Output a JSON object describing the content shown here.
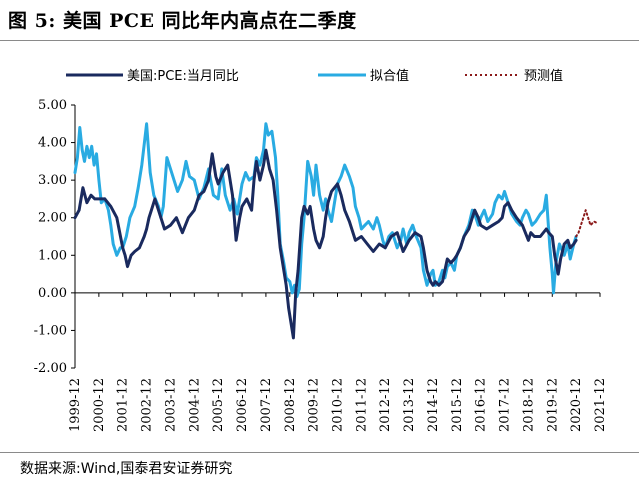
{
  "figure": {
    "title": "图 5:  美国 PCE 同比年内高点在二季度",
    "source": "数据来源:Wind,国泰君安证券研究"
  },
  "chart_data": {
    "type": "line",
    "title": "美国 PCE 同比年内高点在二季度",
    "xlabel": "",
    "ylabel": "",
    "ylim": [
      -2.0,
      5.0
    ],
    "yticks": [
      5.0,
      4.0,
      3.0,
      2.0,
      1.0,
      0.0,
      -1.0,
      -2.0
    ],
    "ytick_labels": [
      "5.00",
      "4.00",
      "3.00",
      "2.00",
      "1.00",
      "0.00",
      "-1.00",
      "-2.00"
    ],
    "x_unit": "year index (0 = 1999-12, monthly steps)",
    "xlim": [
      0,
      22
    ],
    "x_categories": [
      "1999-12",
      "2000-12",
      "2001-12",
      "2002-12",
      "2003-12",
      "2004-12",
      "2005-12",
      "2006-12",
      "2007-12",
      "2008-12",
      "2009-12",
      "2010-12",
      "2011-12",
      "2012-12",
      "2013-12",
      "2014-12",
      "2015-12",
      "2016-12",
      "2017-12",
      "2018-12",
      "2019-12",
      "2020-12",
      "2021-12"
    ],
    "legend_position": "top",
    "series": [
      {
        "name": "美国:PCE:当月同比",
        "color": "#1a2a5e",
        "style": "solid",
        "x": [
          0,
          0.17,
          0.33,
          0.5,
          0.67,
          0.83,
          1.0,
          1.25,
          1.5,
          1.75,
          2.0,
          2.1,
          2.2,
          2.35,
          2.5,
          2.7,
          2.9,
          3.0,
          3.1,
          3.2,
          3.35,
          3.5,
          3.75,
          4.0,
          4.25,
          4.5,
          4.75,
          5.0,
          5.2,
          5.4,
          5.6,
          5.75,
          5.9,
          6.0,
          6.2,
          6.4,
          6.6,
          6.75,
          6.9,
          7.0,
          7.2,
          7.4,
          7.5,
          7.6,
          7.75,
          7.9,
          8.0,
          8.15,
          8.3,
          8.45,
          8.6,
          8.75,
          8.85,
          8.95,
          9.05,
          9.15,
          9.25,
          9.35,
          9.5,
          9.6,
          9.75,
          9.85,
          10.0,
          10.1,
          10.25,
          10.4,
          10.5,
          10.6,
          10.75,
          11.0,
          11.15,
          11.3,
          11.5,
          11.75,
          12.0,
          12.25,
          12.5,
          12.75,
          13.0,
          13.25,
          13.5,
          13.75,
          14.0,
          14.25,
          14.5,
          14.6,
          14.75,
          14.9,
          15.0,
          15.1,
          15.25,
          15.4,
          15.5,
          15.6,
          15.75,
          15.9,
          16.0,
          16.15,
          16.3,
          16.5,
          16.65,
          16.75,
          16.9,
          17.0,
          17.25,
          17.5,
          17.75,
          17.9,
          18.0,
          18.15,
          18.3,
          18.5,
          18.75,
          19.0,
          19.1,
          19.25,
          19.5,
          19.75,
          19.85,
          20.0,
          20.1,
          20.25,
          20.35,
          20.5,
          20.65,
          20.75,
          20.9,
          21.0
        ],
        "y": [
          2.0,
          2.2,
          2.8,
          2.4,
          2.6,
          2.5,
          2.5,
          2.5,
          2.3,
          2.0,
          1.2,
          1.0,
          0.7,
          1.0,
          1.1,
          1.2,
          1.5,
          1.7,
          2.0,
          2.2,
          2.5,
          2.2,
          1.7,
          1.8,
          2.0,
          1.6,
          2.0,
          2.2,
          2.6,
          2.7,
          3.0,
          3.7,
          3.1,
          2.9,
          3.2,
          3.4,
          2.6,
          1.4,
          2.0,
          2.3,
          2.5,
          2.2,
          3.0,
          3.5,
          3.0,
          3.4,
          3.8,
          3.3,
          3.0,
          2.2,
          1.2,
          0.6,
          0.2,
          -0.4,
          -0.8,
          -1.2,
          0.0,
          0.6,
          2.0,
          2.3,
          2.1,
          2.3,
          1.7,
          1.4,
          1.2,
          1.5,
          2.0,
          2.4,
          2.7,
          2.9,
          2.6,
          2.2,
          1.9,
          1.4,
          1.5,
          1.3,
          1.1,
          1.3,
          1.2,
          1.5,
          1.6,
          1.1,
          1.4,
          1.6,
          1.5,
          1.2,
          0.6,
          0.3,
          0.2,
          0.3,
          0.2,
          0.3,
          0.6,
          0.9,
          0.8,
          0.9,
          1.0,
          1.2,
          1.5,
          1.7,
          2.0,
          2.2,
          2.0,
          1.8,
          1.7,
          1.8,
          1.9,
          2.0,
          2.3,
          2.4,
          2.2,
          2.0,
          1.8,
          1.4,
          1.6,
          1.5,
          1.5,
          1.7,
          1.6,
          1.5,
          1.0,
          0.5,
          0.9,
          1.3,
          1.4,
          1.2,
          1.3,
          1.4
        ]
      },
      {
        "name": "拟合值",
        "color": "#29abe2",
        "style": "solid",
        "x": [
          0,
          0.1,
          0.2,
          0.3,
          0.4,
          0.5,
          0.6,
          0.7,
          0.8,
          0.9,
          1.0,
          1.1,
          1.25,
          1.4,
          1.5,
          1.6,
          1.75,
          1.9,
          2.0,
          2.15,
          2.3,
          2.5,
          2.65,
          2.8,
          3.0,
          3.15,
          3.3,
          3.5,
          3.6,
          3.7,
          3.85,
          4.0,
          4.15,
          4.3,
          4.5,
          4.65,
          4.8,
          5.0,
          5.2,
          5.4,
          5.6,
          5.8,
          6.0,
          6.15,
          6.3,
          6.5,
          6.65,
          6.8,
          7.0,
          7.15,
          7.3,
          7.5,
          7.6,
          7.75,
          7.9,
          8.0,
          8.1,
          8.25,
          8.4,
          8.5,
          8.6,
          8.75,
          8.85,
          9.0,
          9.1,
          9.2,
          9.3,
          9.4,
          9.5,
          9.6,
          9.75,
          9.9,
          10.0,
          10.1,
          10.25,
          10.4,
          10.5,
          10.6,
          10.75,
          10.9,
          11.0,
          11.15,
          11.3,
          11.5,
          11.65,
          11.75,
          11.9,
          12.0,
          12.15,
          12.3,
          12.5,
          12.65,
          12.75,
          12.9,
          13.0,
          13.15,
          13.3,
          13.5,
          13.65,
          13.75,
          13.9,
          14.0,
          14.15,
          14.3,
          14.5,
          14.6,
          14.75,
          14.9,
          15.0,
          15.1,
          15.25,
          15.4,
          15.5,
          15.6,
          15.75,
          15.9,
          16.0,
          16.15,
          16.3,
          16.5,
          16.65,
          16.75,
          16.9,
          17.0,
          17.15,
          17.3,
          17.5,
          17.6,
          17.75,
          17.9,
          18.0,
          18.15,
          18.3,
          18.5,
          18.65,
          18.75,
          18.9,
          19.0,
          19.15,
          19.3,
          19.5,
          19.65,
          19.75,
          19.9,
          20.0,
          20.05,
          20.15,
          20.3,
          20.5,
          20.65,
          20.75,
          20.9,
          21.0
        ],
        "y": [
          3.2,
          3.6,
          4.4,
          3.8,
          3.5,
          3.9,
          3.6,
          3.9,
          3.4,
          3.7,
          3.0,
          2.4,
          2.5,
          2.2,
          1.8,
          1.3,
          1.0,
          1.2,
          1.2,
          1.5,
          2.0,
          2.3,
          2.8,
          3.4,
          4.5,
          3.2,
          2.6,
          2.3,
          2.0,
          2.3,
          3.6,
          3.3,
          3.0,
          2.7,
          3.0,
          3.5,
          3.1,
          3.0,
          2.5,
          2.8,
          3.3,
          2.6,
          2.5,
          3.3,
          2.6,
          2.2,
          2.5,
          2.1,
          2.9,
          3.2,
          3.0,
          3.1,
          3.6,
          3.4,
          3.8,
          4.5,
          4.2,
          4.3,
          3.6,
          2.6,
          1.3,
          0.8,
          0.4,
          0.3,
          0.0,
          0.2,
          -0.1,
          0.1,
          1.3,
          2.0,
          3.5,
          3.1,
          2.6,
          3.4,
          2.6,
          2.2,
          2.5,
          2.2,
          1.9,
          2.5,
          2.9,
          3.1,
          3.4,
          3.1,
          2.8,
          2.3,
          2.0,
          1.7,
          1.8,
          1.9,
          1.7,
          2.0,
          1.8,
          1.4,
          1.2,
          1.5,
          1.6,
          1.2,
          1.4,
          1.7,
          1.3,
          1.6,
          1.8,
          1.5,
          1.2,
          0.6,
          0.2,
          0.5,
          0.6,
          0.2,
          0.3,
          0.6,
          0.4,
          0.7,
          0.8,
          0.6,
          1.0,
          1.2,
          1.5,
          1.8,
          2.2,
          2.1,
          1.8,
          2.0,
          2.2,
          1.9,
          2.1,
          2.4,
          2.6,
          2.5,
          2.7,
          2.4,
          2.1,
          1.9,
          1.8,
          2.0,
          2.2,
          2.1,
          1.8,
          1.9,
          2.1,
          2.2,
          2.6,
          1.2,
          0.5,
          0.0,
          0.8,
          1.3,
          1.0,
          1.3,
          0.9,
          1.3,
          1.5
        ]
      },
      {
        "name": "预测值",
        "color": "#8b1a1a",
        "style": "dotted",
        "x": [
          21.0,
          21.1,
          21.25,
          21.4,
          21.5,
          21.6,
          21.75,
          21.9
        ],
        "y": [
          1.5,
          1.6,
          1.9,
          2.2,
          2.0,
          1.8,
          1.9,
          1.85
        ]
      }
    ]
  }
}
